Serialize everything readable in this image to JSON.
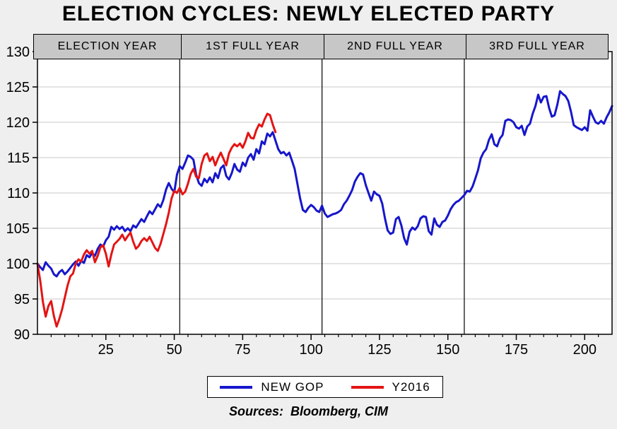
{
  "page": {
    "title": "ELECTION CYCLES: NEWLY ELECTED PARTY",
    "sources_note": "Sources:  Bloomberg, CIM",
    "background_color": "#efefef"
  },
  "chart_data": {
    "type": "line",
    "title": "ELECTION CYCLES: NEWLY ELECTED PARTY",
    "xlabel": "",
    "ylabel": "",
    "xlim": [
      0,
      210
    ],
    "ylim": [
      90,
      130
    ],
    "x_major_ticks": [
      25,
      50,
      75,
      100,
      125,
      150,
      175,
      200
    ],
    "x_minor_tick_step": 5,
    "y_ticks": [
      90,
      95,
      100,
      105,
      110,
      115,
      120,
      125,
      130
    ],
    "grid": "horizontal-only",
    "gridline_color": "#c9c9c9",
    "plot_background": "#ffffff",
    "sections": [
      {
        "label": "ELECTION YEAR",
        "start_week": 0,
        "end_week": 52
      },
      {
        "label": "1ST FULL YEAR",
        "start_week": 52,
        "end_week": 104
      },
      {
        "label": "2ND FULL YEAR",
        "start_week": 104,
        "end_week": 156
      },
      {
        "label": "3RD FULL YEAR",
        "start_week": 156,
        "end_week": 208
      }
    ],
    "section_dividers": [
      52,
      104,
      156
    ],
    "legend": {
      "position": "bottom-center",
      "entries": [
        {
          "name": "NEW GOP",
          "color": "#1616cc"
        },
        {
          "name": "Y2016",
          "color": "#e41414"
        }
      ]
    },
    "series": [
      {
        "name": "NEW GOP",
        "color": "#1616cc",
        "points": [
          [
            0,
            100
          ],
          [
            1,
            99.5
          ],
          [
            2,
            99.1
          ],
          [
            3,
            100.2
          ],
          [
            4,
            99.7
          ],
          [
            5,
            99.3
          ],
          [
            6,
            98.5
          ],
          [
            7,
            98.2
          ],
          [
            8,
            98.8
          ],
          [
            9,
            99.1
          ],
          [
            10,
            98.5
          ],
          [
            11,
            98.9
          ],
          [
            12,
            99.4
          ],
          [
            13,
            99.9
          ],
          [
            14,
            100.3
          ],
          [
            15,
            99.7
          ],
          [
            16,
            100.4
          ],
          [
            17,
            100.1
          ],
          [
            18,
            101.2
          ],
          [
            19,
            100.9
          ],
          [
            20,
            101.5
          ],
          [
            21,
            101.1
          ],
          [
            22,
            102.1
          ],
          [
            23,
            102.7
          ],
          [
            24,
            102.4
          ],
          [
            25,
            103.3
          ],
          [
            26,
            103.8
          ],
          [
            27,
            105.2
          ],
          [
            28,
            104.8
          ],
          [
            29,
            105.3
          ],
          [
            30,
            104.9
          ],
          [
            31,
            105.2
          ],
          [
            32,
            104.6
          ],
          [
            33,
            105.0
          ],
          [
            34,
            104.6
          ],
          [
            35,
            105.4
          ],
          [
            36,
            105.1
          ],
          [
            37,
            105.7
          ],
          [
            38,
            106.3
          ],
          [
            39,
            105.9
          ],
          [
            40,
            106.7
          ],
          [
            41,
            107.4
          ],
          [
            42,
            107.0
          ],
          [
            43,
            107.7
          ],
          [
            44,
            108.4
          ],
          [
            45,
            108.0
          ],
          [
            46,
            109.0
          ],
          [
            47,
            110.5
          ],
          [
            48,
            111.4
          ],
          [
            49,
            110.6
          ],
          [
            50,
            110.1
          ],
          [
            51,
            112.6
          ],
          [
            52,
            113.8
          ],
          [
            53,
            113.4
          ],
          [
            54,
            114.3
          ],
          [
            55,
            115.3
          ],
          [
            56,
            115.1
          ],
          [
            57,
            114.7
          ],
          [
            58,
            112.6
          ],
          [
            59,
            111.4
          ],
          [
            60,
            111.0
          ],
          [
            61,
            112.0
          ],
          [
            62,
            111.5
          ],
          [
            63,
            112.2
          ],
          [
            64,
            111.5
          ],
          [
            65,
            112.8
          ],
          [
            66,
            112.1
          ],
          [
            67,
            113.5
          ],
          [
            68,
            113.9
          ],
          [
            69,
            112.4
          ],
          [
            70,
            111.9
          ],
          [
            71,
            112.8
          ],
          [
            72,
            114.1
          ],
          [
            73,
            113.3
          ],
          [
            74,
            113.0
          ],
          [
            75,
            114.3
          ],
          [
            76,
            113.8
          ],
          [
            77,
            115.0
          ],
          [
            78,
            115.5
          ],
          [
            79,
            114.7
          ],
          [
            80,
            116.2
          ],
          [
            81,
            115.6
          ],
          [
            82,
            117.3
          ],
          [
            83,
            116.9
          ],
          [
            84,
            118.4
          ],
          [
            85,
            118.0
          ],
          [
            86,
            118.6
          ],
          [
            87,
            117.4
          ],
          [
            88,
            116.2
          ],
          [
            89,
            115.6
          ],
          [
            90,
            115.8
          ],
          [
            91,
            115.3
          ],
          [
            92,
            115.7
          ],
          [
            93,
            114.6
          ],
          [
            94,
            113.4
          ],
          [
            95,
            111.3
          ],
          [
            96,
            109.2
          ],
          [
            97,
            107.6
          ],
          [
            98,
            107.3
          ],
          [
            99,
            107.9
          ],
          [
            100,
            108.3
          ],
          [
            101,
            108.0
          ],
          [
            102,
            107.5
          ],
          [
            103,
            107.3
          ],
          [
            104,
            108.2
          ],
          [
            105,
            107.1
          ],
          [
            106,
            106.6
          ],
          [
            107,
            106.8
          ],
          [
            108,
            107.0
          ],
          [
            109,
            107.1
          ],
          [
            110,
            107.3
          ],
          [
            111,
            107.6
          ],
          [
            112,
            108.4
          ],
          [
            113,
            108.9
          ],
          [
            114,
            109.6
          ],
          [
            115,
            110.4
          ],
          [
            116,
            111.6
          ],
          [
            117,
            112.3
          ],
          [
            118,
            112.8
          ],
          [
            119,
            112.6
          ],
          [
            120,
            111.1
          ],
          [
            121,
            110.0
          ],
          [
            122,
            108.9
          ],
          [
            123,
            110.2
          ],
          [
            124,
            109.8
          ],
          [
            125,
            109.6
          ],
          [
            126,
            108.5
          ],
          [
            127,
            106.4
          ],
          [
            128,
            104.7
          ],
          [
            129,
            104.2
          ],
          [
            130,
            104.4
          ],
          [
            131,
            106.3
          ],
          [
            132,
            106.6
          ],
          [
            133,
            105.4
          ],
          [
            134,
            103.6
          ],
          [
            135,
            102.7
          ],
          [
            136,
            104.5
          ],
          [
            137,
            105.1
          ],
          [
            138,
            104.8
          ],
          [
            139,
            105.3
          ],
          [
            140,
            106.4
          ],
          [
            141,
            106.7
          ],
          [
            142,
            106.6
          ],
          [
            143,
            104.6
          ],
          [
            144,
            104.1
          ],
          [
            145,
            106.4
          ],
          [
            146,
            105.5
          ],
          [
            147,
            105.2
          ],
          [
            148,
            105.9
          ],
          [
            149,
            106.1
          ],
          [
            150,
            106.8
          ],
          [
            151,
            107.7
          ],
          [
            152,
            108.3
          ],
          [
            153,
            108.7
          ],
          [
            154,
            108.9
          ],
          [
            155,
            109.3
          ],
          [
            156,
            109.7
          ],
          [
            157,
            110.3
          ],
          [
            158,
            110.2
          ],
          [
            159,
            110.9
          ],
          [
            160,
            112.0
          ],
          [
            161,
            113.2
          ],
          [
            162,
            114.9
          ],
          [
            163,
            115.7
          ],
          [
            164,
            116.2
          ],
          [
            165,
            117.5
          ],
          [
            166,
            118.3
          ],
          [
            167,
            116.9
          ],
          [
            168,
            116.6
          ],
          [
            169,
            117.7
          ],
          [
            170,
            118.2
          ],
          [
            171,
            120.2
          ],
          [
            172,
            120.4
          ],
          [
            173,
            120.3
          ],
          [
            174,
            120.0
          ],
          [
            175,
            119.3
          ],
          [
            176,
            119.1
          ],
          [
            177,
            119.5
          ],
          [
            178,
            118.2
          ],
          [
            179,
            119.4
          ],
          [
            180,
            119.8
          ],
          [
            181,
            121.2
          ],
          [
            182,
            122.3
          ],
          [
            183,
            123.9
          ],
          [
            184,
            122.8
          ],
          [
            185,
            123.6
          ],
          [
            186,
            123.7
          ],
          [
            187,
            122.0
          ],
          [
            188,
            120.8
          ],
          [
            189,
            121.0
          ],
          [
            190,
            122.5
          ],
          [
            191,
            124.4
          ],
          [
            192,
            124.0
          ],
          [
            193,
            123.7
          ],
          [
            194,
            123.0
          ],
          [
            195,
            121.5
          ],
          [
            196,
            119.6
          ],
          [
            197,
            119.3
          ],
          [
            198,
            119.1
          ],
          [
            199,
            118.9
          ],
          [
            200,
            119.3
          ],
          [
            201,
            118.8
          ],
          [
            202,
            121.7
          ],
          [
            203,
            120.8
          ],
          [
            204,
            120.0
          ],
          [
            205,
            119.8
          ],
          [
            206,
            120.2
          ],
          [
            207,
            119.8
          ],
          [
            208,
            120.7
          ],
          [
            209,
            121.4
          ],
          [
            210,
            122.3
          ]
        ]
      },
      {
        "name": "Y2016",
        "color": "#e41414",
        "points": [
          [
            0,
            100
          ],
          [
            1,
            97.6
          ],
          [
            2,
            94.6
          ],
          [
            3,
            92.5
          ],
          [
            4,
            94.0
          ],
          [
            5,
            94.7
          ],
          [
            6,
            92.6
          ],
          [
            7,
            91.1
          ],
          [
            8,
            92.2
          ],
          [
            9,
            93.5
          ],
          [
            10,
            95.2
          ],
          [
            11,
            96.9
          ],
          [
            12,
            98.2
          ],
          [
            13,
            98.6
          ],
          [
            14,
            100.0
          ],
          [
            15,
            100.6
          ],
          [
            16,
            100.3
          ],
          [
            17,
            101.3
          ],
          [
            18,
            101.9
          ],
          [
            19,
            101.4
          ],
          [
            20,
            101.8
          ],
          [
            21,
            100.2
          ],
          [
            22,
            101.1
          ],
          [
            23,
            102.3
          ],
          [
            24,
            102.6
          ],
          [
            25,
            101.4
          ],
          [
            26,
            99.6
          ],
          [
            27,
            101.3
          ],
          [
            28,
            102.7
          ],
          [
            29,
            103.1
          ],
          [
            30,
            103.5
          ],
          [
            31,
            104.1
          ],
          [
            32,
            103.3
          ],
          [
            33,
            103.9
          ],
          [
            34,
            104.4
          ],
          [
            35,
            103.1
          ],
          [
            36,
            102.1
          ],
          [
            37,
            102.5
          ],
          [
            38,
            103.2
          ],
          [
            39,
            103.6
          ],
          [
            40,
            103.2
          ],
          [
            41,
            103.8
          ],
          [
            42,
            103.0
          ],
          [
            43,
            102.2
          ],
          [
            44,
            101.8
          ],
          [
            45,
            102.8
          ],
          [
            46,
            104.2
          ],
          [
            47,
            105.6
          ],
          [
            48,
            107.2
          ],
          [
            49,
            109.2
          ],
          [
            50,
            110.3
          ],
          [
            51,
            110.0
          ],
          [
            52,
            110.7
          ],
          [
            53,
            109.8
          ],
          [
            54,
            110.2
          ],
          [
            55,
            111.3
          ],
          [
            56,
            112.7
          ],
          [
            57,
            113.4
          ],
          [
            58,
            112.3
          ],
          [
            59,
            112.1
          ],
          [
            60,
            114.1
          ],
          [
            61,
            115.3
          ],
          [
            62,
            115.6
          ],
          [
            63,
            114.5
          ],
          [
            64,
            115.1
          ],
          [
            65,
            113.9
          ],
          [
            66,
            114.9
          ],
          [
            67,
            115.7
          ],
          [
            68,
            114.8
          ],
          [
            69,
            113.9
          ],
          [
            70,
            115.6
          ],
          [
            71,
            116.4
          ],
          [
            72,
            116.9
          ],
          [
            73,
            116.6
          ],
          [
            74,
            117.0
          ],
          [
            75,
            116.4
          ],
          [
            76,
            117.3
          ],
          [
            77,
            118.5
          ],
          [
            78,
            117.8
          ],
          [
            79,
            117.7
          ],
          [
            80,
            118.9
          ],
          [
            81,
            119.7
          ],
          [
            82,
            119.4
          ],
          [
            83,
            120.4
          ],
          [
            84,
            121.2
          ],
          [
            85,
            121.0
          ],
          [
            86,
            119.7
          ],
          [
            87,
            118.6
          ]
        ]
      }
    ]
  }
}
